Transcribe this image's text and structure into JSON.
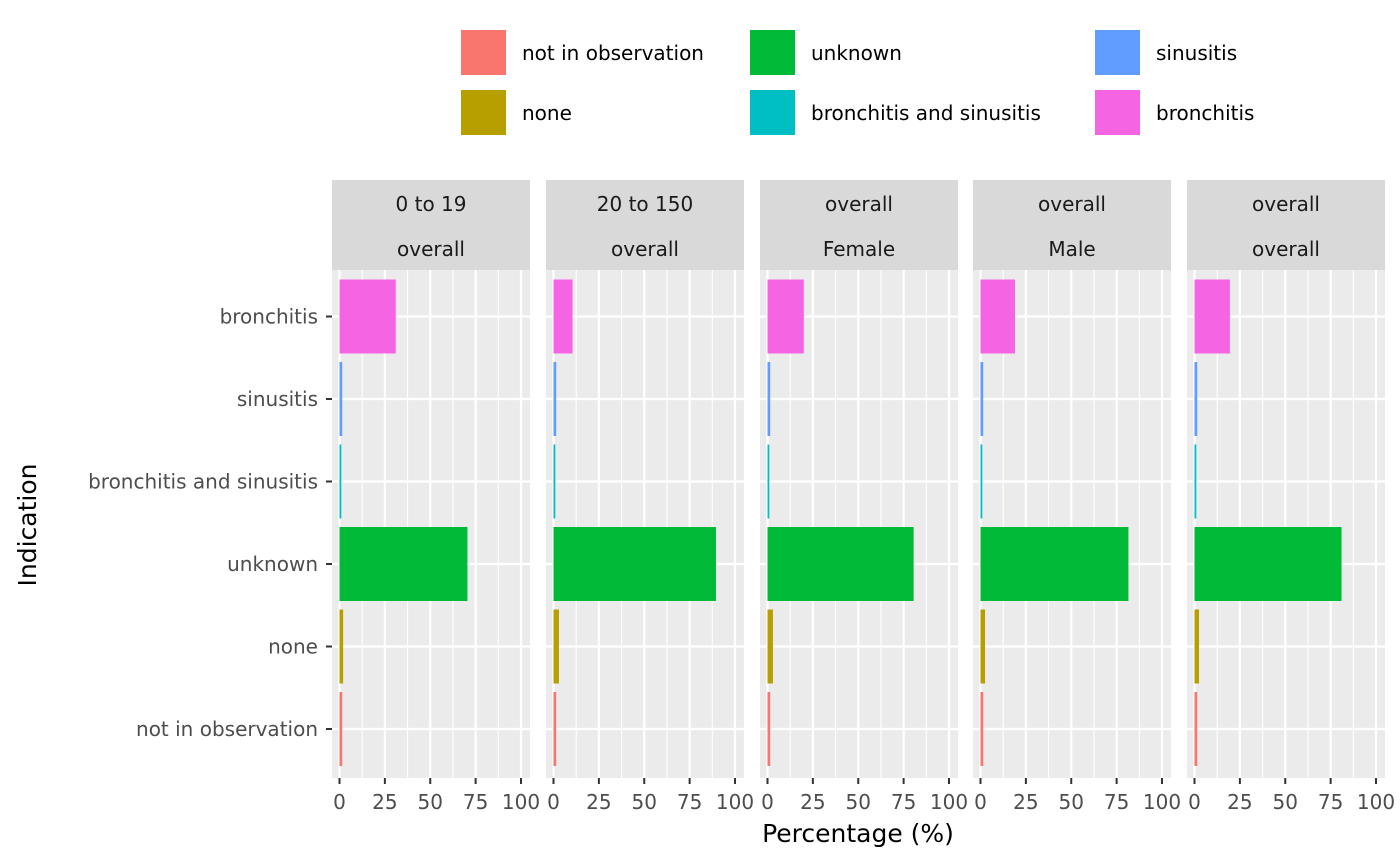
{
  "chart_data": {
    "type": "bar",
    "orientation": "horizontal",
    "xlabel": "Percentage (%)",
    "ylabel": "Indication",
    "xlim": [
      0,
      100
    ],
    "x_ticks": [
      0,
      25,
      50,
      75,
      100
    ],
    "x_tick_labels": [
      "0",
      "25",
      "50",
      "75",
      "100"
    ],
    "grid": true,
    "legend_position": "top",
    "categories": [
      "bronchitis",
      "sinusitis",
      "bronchitis and sinusitis",
      "unknown",
      "none",
      "not in observation"
    ],
    "colors": {
      "not in observation": "#F8766D",
      "none": "#B79F00",
      "unknown": "#00BA38",
      "bronchitis and sinusitis": "#00BFC4",
      "sinusitis": "#619CFF",
      "bronchitis": "#F564E3"
    },
    "legend": [
      [
        "not in observation",
        "unknown",
        "sinusitis"
      ],
      [
        "none",
        "bronchitis and sinusitis",
        "bronchitis"
      ]
    ],
    "facets": [
      {
        "strip": [
          "0 to 19",
          "overall"
        ],
        "values": {
          "bronchitis": 31,
          "sinusitis": 1.5,
          "bronchitis and sinusitis": 1,
          "unknown": 70.5,
          "none": 2,
          "not in observation": 1.5
        }
      },
      {
        "strip": [
          "20 to 150",
          "overall"
        ],
        "values": {
          "bronchitis": 10.5,
          "sinusitis": 1.5,
          "bronchitis and sinusitis": 1,
          "unknown": 89.5,
          "none": 3,
          "not in observation": 1.5
        }
      },
      {
        "strip": [
          "overall",
          "Female"
        ],
        "values": {
          "bronchitis": 20,
          "sinusitis": 1.5,
          "bronchitis and sinusitis": 1,
          "unknown": 80.5,
          "none": 3,
          "not in observation": 1.5
        }
      },
      {
        "strip": [
          "overall",
          "Male"
        ],
        "values": {
          "bronchitis": 19,
          "sinusitis": 1.5,
          "bronchitis and sinusitis": 1,
          "unknown": 81.5,
          "none": 2.5,
          "not in observation": 1.5
        }
      },
      {
        "strip": [
          "overall",
          "overall"
        ],
        "values": {
          "bronchitis": 19.5,
          "sinusitis": 1.5,
          "bronchitis and sinusitis": 1,
          "unknown": 81,
          "none": 2.5,
          "not in observation": 1.5
        }
      }
    ]
  }
}
